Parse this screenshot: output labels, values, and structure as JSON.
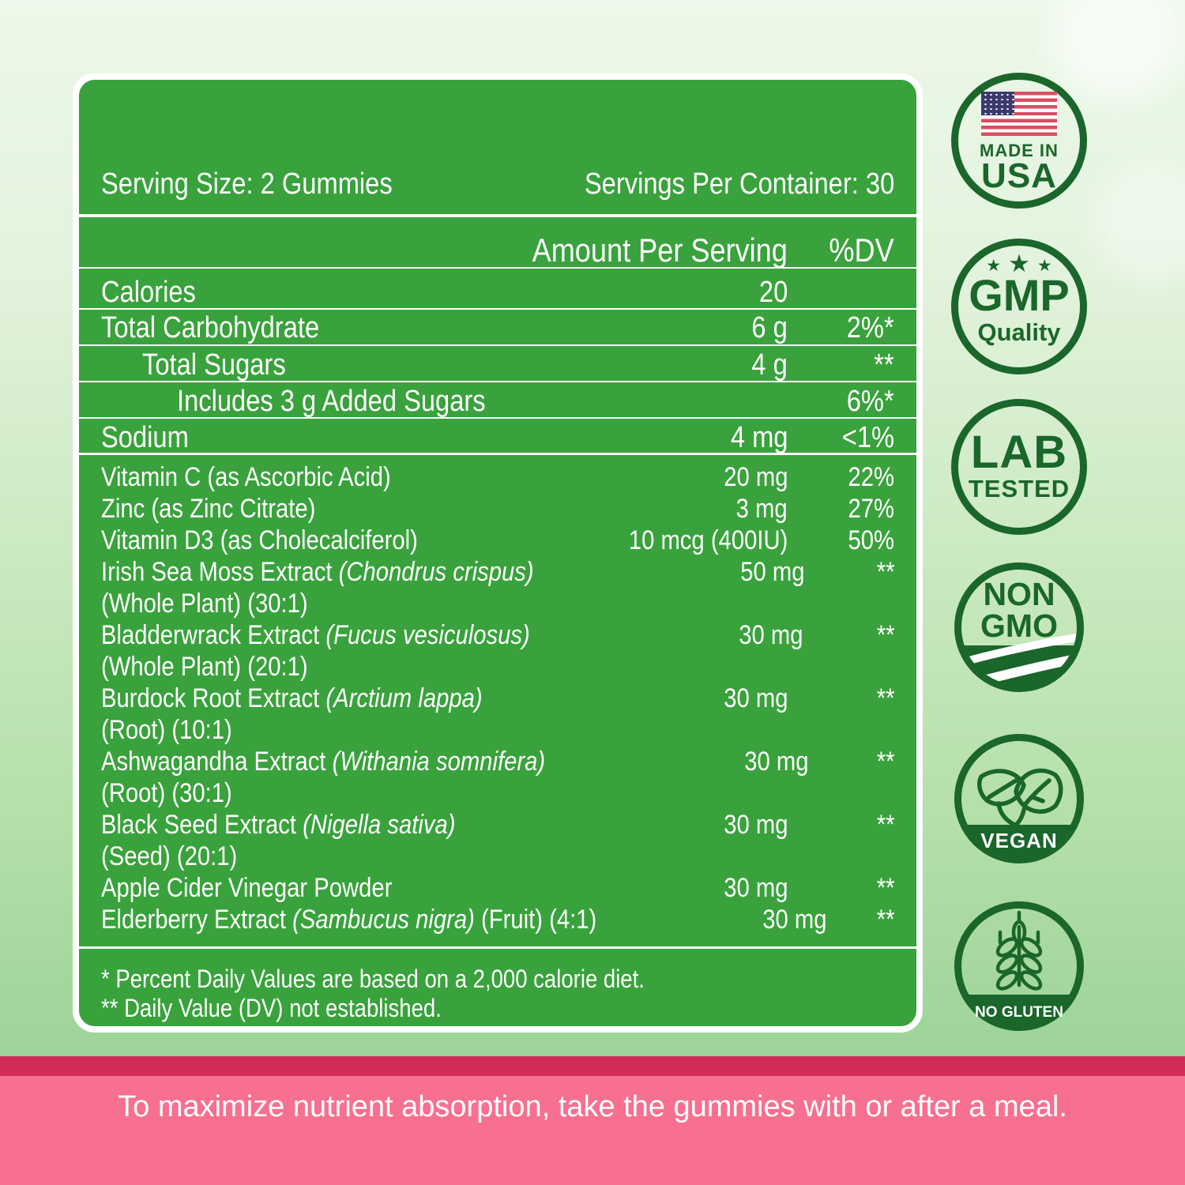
{
  "panel": {
    "serving_size": "Serving Size: 2 Gummies",
    "servings_per_container": "Servings Per Container: 30",
    "columns": {
      "amount": "Amount Per Serving",
      "dv": "%DV"
    },
    "main_rows": [
      {
        "label": "Calories",
        "amount": "20",
        "dv": "",
        "indent": 0
      },
      {
        "label": "Total Carbohydrate",
        "amount": "6 g",
        "dv": "2%*",
        "indent": 0
      },
      {
        "label": "Total Sugars",
        "amount": "4 g",
        "dv": "**",
        "indent": 1
      },
      {
        "label": "Includes 3 g Added Sugars",
        "amount": "",
        "dv": "6%*",
        "indent": 2
      },
      {
        "label": "Sodium",
        "amount": "4 mg",
        "dv": "<1%",
        "indent": 0
      }
    ],
    "supplement_rows": [
      {
        "name": "Vitamin C (as Ascorbic Acid)",
        "latin": "",
        "suffix": "",
        "line2": "",
        "amount": "20 mg",
        "dv": "22%"
      },
      {
        "name": "Zinc (as Zinc Citrate)",
        "latin": "",
        "suffix": "",
        "line2": "",
        "amount": "3 mg",
        "dv": "27%"
      },
      {
        "name": "Vitamin D3 (as Cholecalciferol)",
        "latin": "",
        "suffix": "",
        "line2": "",
        "amount": "10 mcg (400IU)",
        "dv": "50%"
      },
      {
        "name": "Irish Sea Moss Extract",
        "latin": "(Chondrus crispus)",
        "suffix": "",
        "line2": "(Whole Plant) (30:1)",
        "amount": "50 mg",
        "dv": "**"
      },
      {
        "name": "Bladderwrack Extract",
        "latin": "(Fucus vesiculosus)",
        "suffix": "",
        "line2": "(Whole Plant) (20:1)",
        "amount": "30 mg",
        "dv": "**"
      },
      {
        "name": "Burdock Root Extract",
        "latin": "(Arctium lappa)",
        "suffix": "",
        "line2": "(Root) (10:1)",
        "amount": "30 mg",
        "dv": "**"
      },
      {
        "name": "Ashwagandha Extract",
        "latin": "(Withania somnifera)",
        "suffix": "",
        "line2": "(Root) (30:1)",
        "amount": "30 mg",
        "dv": "**"
      },
      {
        "name": "Black Seed Extract",
        "latin": "(Nigella sativa)",
        "suffix": "",
        "line2": "(Seed) (20:1)",
        "amount": "30 mg",
        "dv": "**"
      },
      {
        "name": "Apple Cider Vinegar Powder",
        "latin": "",
        "suffix": "",
        "line2": "",
        "amount": "30 mg",
        "dv": "**"
      },
      {
        "name": "Elderberry Extract",
        "latin": "(Sambucus nigra)",
        "suffix": "(Fruit) (4:1)",
        "line2": "",
        "amount": "30 mg",
        "dv": "**"
      }
    ],
    "footnotes": [
      "* Percent Daily Values are based on a 2,000 calorie diet.",
      "** Daily Value (DV) not established."
    ]
  },
  "badges": {
    "usa": {
      "line1": "MADE IN",
      "line2": "USA"
    },
    "gmp": {
      "star": "★",
      "line1": "GMP",
      "line2": "Quality"
    },
    "lab": {
      "line1": "LAB",
      "line2": "TESTED"
    },
    "nongmo": {
      "line1": "NON",
      "line2": "GMO"
    },
    "vegan": {
      "label": "VEGAN"
    },
    "gluten": {
      "label": "NO GLUTEN"
    }
  },
  "bottom_bar": {
    "text": "To maximize nutrient absorption, take the gummies with or after a meal."
  },
  "colors": {
    "panel-green": "#39a23c",
    "badge-green": "#1a662b",
    "crimson": "#d22d56",
    "pink": "#f7708f",
    "flag-red": "#d94f63",
    "flag-blue": "#3a3a6e"
  }
}
